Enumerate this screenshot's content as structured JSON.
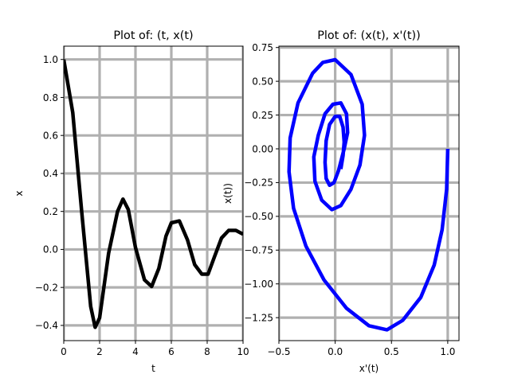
{
  "chart_data": [
    {
      "type": "line",
      "title": "Plot of: (t, x(t)",
      "xlabel": "t",
      "ylabel": "x",
      "xlim": [
        0,
        10
      ],
      "ylim": [
        -0.48,
        1.07
      ],
      "xticks": [
        0,
        2,
        4,
        6,
        8,
        10
      ],
      "yticks": [
        -0.4,
        -0.2,
        0.0,
        0.2,
        0.4,
        0.6,
        0.8,
        1.0
      ],
      "xtick_labels": [
        "0",
        "2",
        "4",
        "6",
        "8",
        "10"
      ],
      "ytick_labels": [
        "−0.4",
        "−0.2",
        "0.0",
        "0.2",
        "0.4",
        "0.6",
        "0.8",
        "1.0"
      ],
      "grid": true,
      "grid_color": "#b0b0b0",
      "line_color": "#000000",
      "series": [
        {
          "x": [
            0.0,
            0.5,
            1.0,
            1.5,
            1.75,
            2.0,
            2.5,
            3.0,
            3.3,
            3.6,
            4.0,
            4.5,
            4.9,
            5.3,
            5.7,
            6.0,
            6.45,
            6.9,
            7.3,
            7.7,
            8.05,
            8.4,
            8.8,
            9.2,
            9.6,
            10.0
          ],
          "y": [
            1.0,
            0.72,
            0.2,
            -0.3,
            -0.41,
            -0.36,
            -0.02,
            0.2,
            0.265,
            0.21,
            0.01,
            -0.16,
            -0.195,
            -0.1,
            0.07,
            0.14,
            0.15,
            0.05,
            -0.08,
            -0.13,
            -0.13,
            -0.04,
            0.06,
            0.1,
            0.1,
            0.08
          ]
        }
      ]
    },
    {
      "type": "line",
      "title": "Plot of: (x(t), x'(t))",
      "xlabel": "x'(t)",
      "ylabel": "x(t))",
      "xlim": [
        -0.5,
        1.1
      ],
      "ylim": [
        -1.42,
        0.76
      ],
      "xticks": [
        -0.5,
        0.0,
        0.5,
        1.0
      ],
      "yticks": [
        -1.25,
        -1.0,
        -0.75,
        -0.5,
        -0.25,
        0.0,
        0.25,
        0.5,
        0.75
      ],
      "xtick_labels": [
        "−0.5",
        "0.0",
        "0.5",
        "1.0"
      ],
      "ytick_labels": [
        "−1.25",
        "−1.00",
        "−0.75",
        "−0.50",
        "−0.25",
        "0.00",
        "0.25",
        "0.50",
        "0.75"
      ],
      "grid": true,
      "grid_color": "#b0b0b0",
      "line_color": "#0000ff",
      "series": [
        {
          "x": [
            1.0,
            0.99,
            0.95,
            0.88,
            0.76,
            0.6,
            0.46,
            0.3,
            0.1,
            -0.1,
            -0.26,
            -0.37,
            -0.41,
            -0.4,
            -0.33,
            -0.2,
            -0.11,
            0.0,
            0.14,
            0.24,
            0.26,
            0.22,
            0.14,
            0.05,
            -0.03,
            -0.12,
            -0.18,
            -0.19,
            -0.15,
            -0.09,
            -0.02,
            0.05,
            0.1,
            0.11,
            0.08,
            0.03,
            -0.01,
            -0.05,
            -0.08,
            -0.09,
            -0.08,
            -0.05,
            0.0,
            0.04,
            0.07,
            0.08,
            0.07,
            0.05
          ],
          "y": [
            0.0,
            -0.3,
            -0.6,
            -0.86,
            -1.1,
            -1.27,
            -1.34,
            -1.31,
            -1.18,
            -0.97,
            -0.72,
            -0.44,
            -0.17,
            0.08,
            0.34,
            0.56,
            0.64,
            0.66,
            0.55,
            0.33,
            0.1,
            -0.12,
            -0.3,
            -0.42,
            -0.45,
            -0.38,
            -0.24,
            -0.06,
            0.1,
            0.26,
            0.33,
            0.34,
            0.26,
            0.12,
            0.0,
            -0.16,
            -0.25,
            -0.27,
            -0.22,
            -0.1,
            0.06,
            0.18,
            0.24,
            0.24,
            0.16,
            0.05,
            -0.05,
            -0.15
          ]
        }
      ]
    }
  ]
}
